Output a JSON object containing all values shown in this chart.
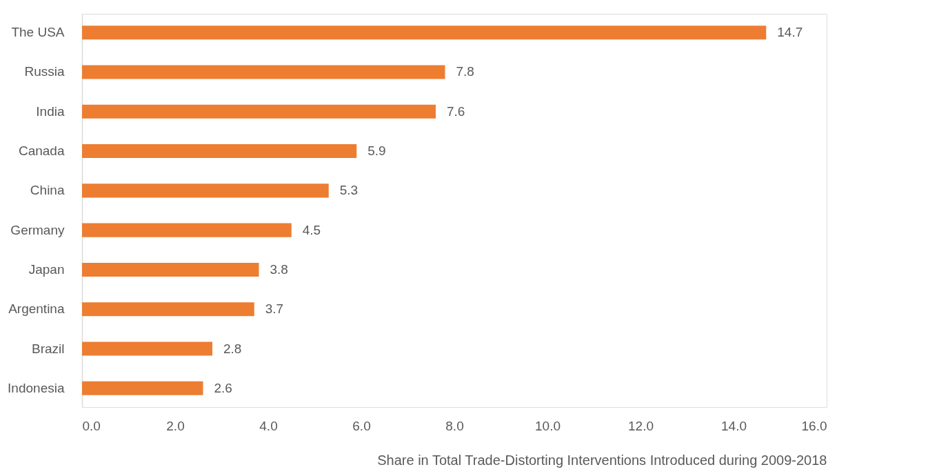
{
  "chart_data": {
    "type": "bar",
    "orientation": "horizontal",
    "xlabel": "Share in Total Trade-Distorting Interventions Introduced during 2009-2018",
    "categories": [
      "The USA",
      "Russia",
      "India",
      "Canada",
      "China",
      "Germany",
      "Japan",
      "Argentina",
      "Brazil",
      "Indonesia"
    ],
    "values": [
      14.7,
      7.8,
      7.6,
      5.9,
      5.3,
      4.5,
      3.8,
      3.7,
      2.8,
      2.6
    ],
    "color": "#ed7d31",
    "data_labels": true,
    "grid": false,
    "xlim": [
      0,
      16
    ],
    "xticks": [
      {
        "value": 0,
        "label": "0.0"
      },
      {
        "value": 2,
        "label": "2.0"
      },
      {
        "value": 4,
        "label": "4.0"
      },
      {
        "value": 6,
        "label": "6.0"
      },
      {
        "value": 8,
        "label": "8.0"
      },
      {
        "value": 10,
        "label": "10.0"
      },
      {
        "value": 12,
        "label": "12.0"
      },
      {
        "value": 14,
        "label": "14.0"
      },
      {
        "value": 16,
        "label": "16.0"
      }
    ]
  }
}
